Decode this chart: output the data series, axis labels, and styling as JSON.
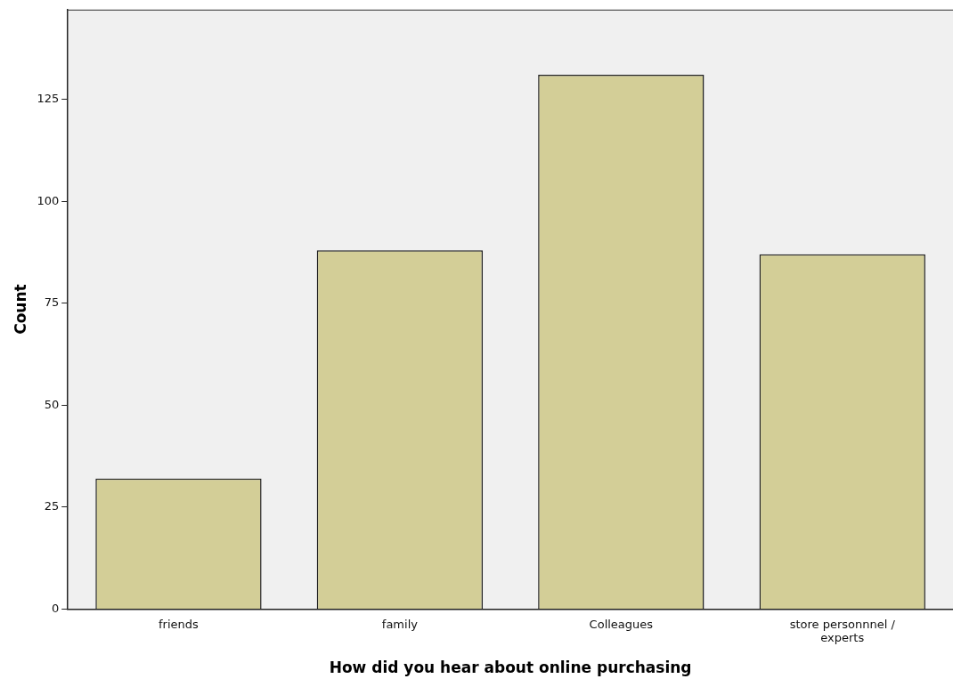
{
  "chart_data": {
    "type": "bar",
    "xlabel": "How did you hear about online purchasing",
    "ylabel": "Count",
    "categories": [
      "friends",
      "family",
      "Colleagues",
      "store personnnel / experts"
    ],
    "values": [
      32,
      88,
      131,
      87
    ],
    "color": "#d3ce97",
    "ylim": [
      0,
      147
    ],
    "yticks": [
      0,
      25,
      50,
      75,
      100,
      125
    ],
    "grid": false,
    "legend": false
  }
}
